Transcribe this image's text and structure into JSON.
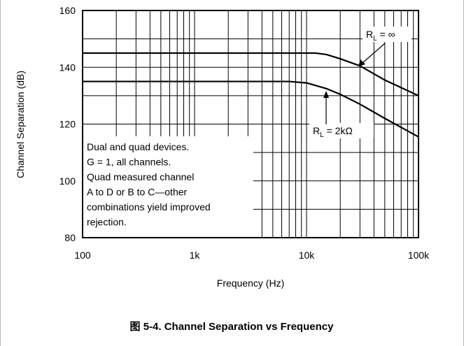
{
  "chart_data": {
    "type": "line",
    "caption": "图 5-4. Channel Separation vs Frequency",
    "xlabel": "Frequency (Hz)",
    "ylabel": "Channel Separation (dB)",
    "xscale": "log",
    "xlim": [
      100,
      100000
    ],
    "xticks": [
      100,
      {
        "value": 1000,
        "label": "1k"
      },
      {
        "value": 10000,
        "label": "10k"
      },
      {
        "value": 100000,
        "label": "100k"
      }
    ],
    "ylim": [
      80,
      160
    ],
    "yticks": [
      80,
      100,
      120,
      140,
      160
    ],
    "grid": true,
    "minor_grid": true,
    "series": [
      {
        "name": "RL = ∞",
        "color": "#000000",
        "x": [
          100,
          10000,
          12000,
          15000,
          20000,
          30000,
          50000,
          100000
        ],
        "values": [
          145,
          145,
          145,
          144.5,
          143,
          140.5,
          135.5,
          130
        ]
      },
      {
        "name": "RL = 2kΩ",
        "color": "#000000",
        "x": [
          100,
          7000,
          10000,
          15000,
          20000,
          30000,
          50000,
          100000
        ],
        "values": [
          135,
          135,
          134.5,
          132.5,
          130.5,
          127,
          122,
          115.5
        ]
      }
    ],
    "annotations": [
      {
        "parts": [
          "R",
          "L",
          " = ∞"
        ]
      },
      {
        "parts": [
          "R",
          "L",
          " = 2kΩ"
        ]
      }
    ],
    "note_lines": [
      "Dual and quad devices.",
      "G = 1,  all channels.",
      "Quad measured channel",
      "A to D or B to C—other",
      "combinations yield improved",
      "rejection."
    ]
  }
}
